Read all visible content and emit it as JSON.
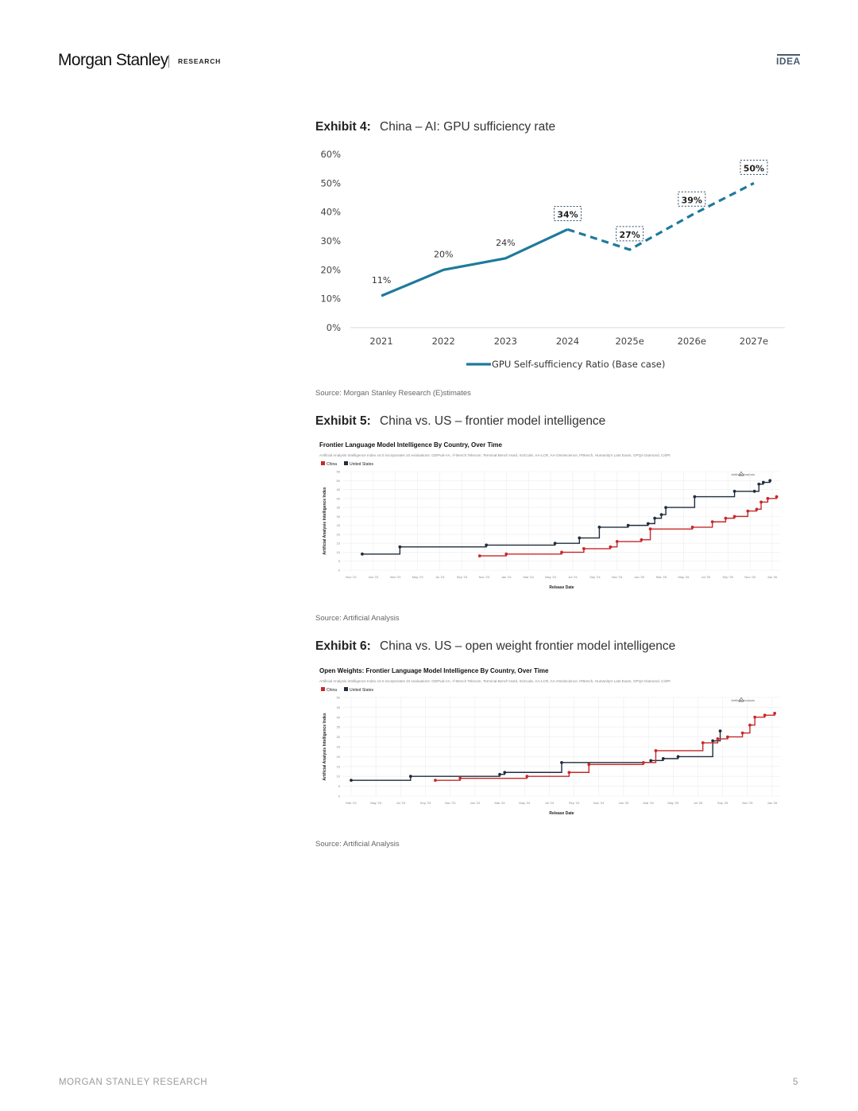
{
  "header": {
    "brand": "Morgan Stanley",
    "section": "RESEARCH",
    "tag": "IDEA"
  },
  "exhibits": [
    {
      "label": "Exhibit 4:",
      "title": "China – AI: GPU sufficiency rate",
      "source": "Source: Morgan Stanley Research (E)stimates"
    },
    {
      "label": "Exhibit 5:",
      "title": "China vs. US – frontier model intelligence",
      "source": "Source: Artificial Analysis"
    },
    {
      "label": "Exhibit 6:",
      "title": "China vs. US – open weight frontier model intelligence",
      "source": "Source: Artificial Analysis"
    }
  ],
  "chart_data": [
    {
      "type": "line",
      "x": [
        "2021",
        "2022",
        "2023",
        "2024",
        "2025e",
        "2026e",
        "2027e"
      ],
      "series": [
        {
          "name": "GPU Self-sufficiency Ratio (Base case)",
          "values": [
            11,
            20,
            24,
            34,
            27,
            39,
            50
          ],
          "color": "#1e7a9c"
        }
      ],
      "value_labels": [
        "11%",
        "20%",
        "24%",
        "34%",
        "27%",
        "39%",
        "50%"
      ],
      "boxed_labels_from_index": 3,
      "estimate_from_index": 3,
      "yticks": [
        "0%",
        "10%",
        "20%",
        "30%",
        "40%",
        "50%",
        "60%"
      ],
      "ylim": [
        0,
        60
      ],
      "legend": "GPU Self-sufficiency Ratio (Base case)",
      "legend_position": "bottom"
    },
    {
      "type": "line",
      "title": "Frontier Language Model Intelligence By Country, Over Time",
      "subtitle": "Artificial Analysis Intelligence Index v4.0 incorporates 10 evaluations: GDPval-AA, τ²-Bench Telecom, Terminal-Bench Hard, SciCode, AA-LCR, AA-Omniscience, IFBench, Humanity's Last Exam, GPQA Diamond, CritPt",
      "legend": [
        "China",
        "United States"
      ],
      "watermark": "Artificial Analysis",
      "xlabel": "Release Date",
      "ylabel": "Artificial Analysis Intelligence Index",
      "ylim": [
        0,
        55
      ],
      "yticks": [
        "0",
        "5",
        "10",
        "15",
        "20",
        "25",
        "30",
        "35",
        "40",
        "45",
        "50",
        "55"
      ],
      "xticks": [
        "Nov '22",
        "Jan '23",
        "Mar '23",
        "May '23",
        "Jul '23",
        "Sep '23",
        "Nov '23",
        "Jan '24",
        "Mar '24",
        "May '24",
        "Jul '24",
        "Sep '24",
        "Nov '24",
        "Jan '25",
        "Mar '25",
        "May '25",
        "Jul '25",
        "Sep '25",
        "Nov '25",
        "Jan '26"
      ],
      "xlim": [
        0,
        19
      ],
      "series": [
        {
          "name": "United States",
          "color": "#1f2d3d",
          "points": [
            [
              0.5,
              9
            ],
            [
              2.2,
              13
            ],
            [
              6.1,
              14
            ],
            [
              9.2,
              15
            ],
            [
              10.3,
              18
            ],
            [
              11.2,
              24
            ],
            [
              12.5,
              25
            ],
            [
              13.4,
              26
            ],
            [
              13.7,
              29
            ],
            [
              14.0,
              31
            ],
            [
              14.2,
              35
            ],
            [
              15.5,
              41
            ],
            [
              17.3,
              44
            ],
            [
              18.2,
              44
            ],
            [
              18.4,
              48
            ],
            [
              18.6,
              49
            ],
            [
              18.9,
              50
            ]
          ]
        },
        {
          "name": "China",
          "color": "#c8282a",
          "points": [
            [
              5.8,
              8
            ],
            [
              7.0,
              9
            ],
            [
              9.5,
              10
            ],
            [
              10.5,
              12
            ],
            [
              11.7,
              13
            ],
            [
              12.0,
              16
            ],
            [
              13.1,
              17
            ],
            [
              13.5,
              23
            ],
            [
              15.4,
              24
            ],
            [
              16.3,
              27
            ],
            [
              16.9,
              29
            ],
            [
              17.3,
              30
            ],
            [
              17.9,
              33
            ],
            [
              18.3,
              34
            ],
            [
              18.5,
              38
            ],
            [
              18.8,
              40
            ],
            [
              19.2,
              41
            ]
          ]
        }
      ]
    },
    {
      "type": "line",
      "title": "Open Weights: Frontier Language Model Intelligence By Country, Over Time",
      "subtitle": "Artificial Analysis Intelligence Index v4.0 incorporates 10 evaluations: GDPval-AA, τ²-Bench Telecom, Terminal-Bench Hard, SciCode, AA-LCR, AA-Omniscience, IFBench, Humanity's Last Exam, GPQA Diamond, CritPt",
      "legend": [
        "China",
        "United States"
      ],
      "watermark": "Artificial Analysis",
      "xlabel": "Release Date",
      "ylabel": "Artificial Analysis Intelligence Index",
      "ylim": [
        0,
        50
      ],
      "yticks": [
        "0",
        "5",
        "10",
        "15",
        "20",
        "25",
        "30",
        "35",
        "40",
        "45",
        "50"
      ],
      "xticks": [
        "Mar '23",
        "May '23",
        "Jul '23",
        "Sep '23",
        "Nov '23",
        "Jan '24",
        "Mar '24",
        "May '24",
        "Jul '24",
        "Sep '24",
        "Nov '24",
        "Jan '25",
        "Mar '25",
        "May '25",
        "Jul '25",
        "Sep '25",
        "Nov '25",
        "Jan '26"
      ],
      "xlim": [
        0,
        17
      ],
      "series": [
        {
          "name": "United States",
          "color": "#1f2d3d",
          "points": [
            [
              0.0,
              8
            ],
            [
              2.4,
              10
            ],
            [
              6.0,
              11
            ],
            [
              6.2,
              12
            ],
            [
              8.5,
              17
            ],
            [
              12.1,
              18
            ],
            [
              12.6,
              19
            ],
            [
              13.2,
              20
            ],
            [
              14.6,
              28
            ],
            [
              14.9,
              33
            ]
          ]
        },
        {
          "name": "China",
          "color": "#c8282a",
          "points": [
            [
              3.4,
              8
            ],
            [
              4.4,
              9
            ],
            [
              7.1,
              10
            ],
            [
              8.8,
              12
            ],
            [
              9.6,
              16
            ],
            [
              11.8,
              17
            ],
            [
              12.3,
              23
            ],
            [
              14.2,
              27
            ],
            [
              14.8,
              29
            ],
            [
              15.2,
              30
            ],
            [
              15.8,
              32
            ],
            [
              16.1,
              36
            ],
            [
              16.3,
              40
            ],
            [
              16.7,
              41
            ],
            [
              17.1,
              42
            ]
          ]
        }
      ]
    }
  ],
  "footer": {
    "left": "MORGAN STANLEY RESEARCH",
    "page": "5"
  }
}
